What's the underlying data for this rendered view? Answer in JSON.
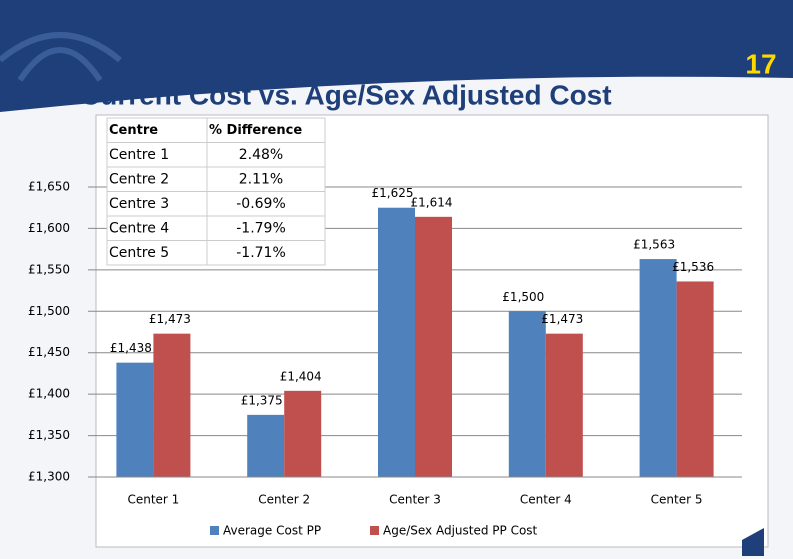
{
  "slide_number": "17",
  "chart_data": {
    "type": "bar",
    "title": "Current Cost vs. Age/Sex Adjusted Cost",
    "categories": [
      "Center 1",
      "Center 2",
      "Center 3",
      "Center 4",
      "Center 5"
    ],
    "series": [
      {
        "name": "Average Cost PP",
        "color": "#4f81bd",
        "values": [
          1438,
          1375,
          1625,
          1500,
          1563
        ],
        "value_labels": [
          "£1,438",
          "£1,375",
          "£1,625",
          "£1,500",
          "£1,563"
        ]
      },
      {
        "name": "Age/Sex Adjusted PP Cost",
        "color": "#c0504d",
        "values": [
          1473,
          1404,
          1614,
          1473,
          1536
        ],
        "value_labels": [
          "£1,473",
          "£1,404",
          "£1,614",
          "£1,473",
          "£1,536"
        ]
      }
    ],
    "ylim": [
      1300,
      1650
    ],
    "yticks": [
      {
        "value": 1300,
        "label": "£1,300"
      },
      {
        "value": 1350,
        "label": "£1,350"
      },
      {
        "value": 1400,
        "label": "£1,400"
      },
      {
        "value": 1450,
        "label": "£1,450"
      },
      {
        "value": 1500,
        "label": "£1,500"
      },
      {
        "value": 1550,
        "label": "£1,550"
      },
      {
        "value": 1600,
        "label": "£1,600"
      },
      {
        "value": 1650,
        "label": "£1,650"
      }
    ],
    "grid": true,
    "legend": "bottom"
  },
  "table": {
    "header": [
      "Centre",
      "% Difference"
    ],
    "rows": [
      [
        "Centre 1",
        "2.48%"
      ],
      [
        "Centre 2",
        "2.11%"
      ],
      [
        "Centre 3",
        "-0.69%"
      ],
      [
        "Centre 4",
        "-1.79%"
      ],
      [
        "Centre 5",
        "-1.71%"
      ]
    ]
  }
}
